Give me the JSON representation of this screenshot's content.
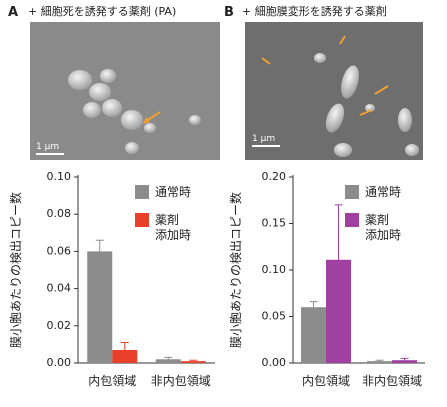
{
  "panels": [
    {
      "label": "A",
      "title": "+ 細胞死を誘発する薬剤 (PA)",
      "scale_bar": "1 µm"
    },
    {
      "label": "B",
      "title": "+ 細胞膜変形を誘発する薬剤",
      "scale_bar": "1 µm"
    }
  ],
  "chart_data": [
    {
      "type": "bar",
      "y_label": "膜小胞あたりの検出コピー数",
      "categories": [
        "内包領域",
        "非内包領域"
      ],
      "series": [
        {
          "name": "通常時",
          "color": "#8c8c8c",
          "values": [
            0.06,
            0.002
          ],
          "errors": [
            0.006,
            0.001
          ]
        },
        {
          "name": "薬剤\n添加時",
          "color": "#e8402a",
          "values": [
            0.007,
            0.001
          ],
          "errors": [
            0.004,
            0.0005
          ]
        }
      ],
      "ylim": [
        0,
        0.1
      ],
      "yticks": [
        {
          "value": 0,
          "label": "0.00"
        },
        {
          "value": 0.02,
          "label": "0.02"
        },
        {
          "value": 0.04,
          "label": "0.04"
        },
        {
          "value": 0.06,
          "label": "0.06"
        },
        {
          "value": 0.08,
          "label": "0.08"
        },
        {
          "value": 0.1,
          "label": "0.10"
        }
      ],
      "legend": "upper right"
    },
    {
      "type": "bar",
      "y_label": "膜小胞あたりの検出コピー数",
      "categories": [
        "内包領域",
        "非内包領域"
      ],
      "series": [
        {
          "name": "通常時",
          "color": "#8c8c8c",
          "values": [
            0.06,
            0.002
          ],
          "errors": [
            0.006,
            0.001
          ]
        },
        {
          "name": "薬剤\n添加時",
          "color": "#a040a0",
          "values": [
            0.111,
            0.003
          ],
          "errors": [
            0.059,
            0.002
          ]
        }
      ],
      "ylim": [
        0,
        0.2
      ],
      "yticks": [
        {
          "value": 0,
          "label": "0.00"
        },
        {
          "value": 0.05,
          "label": "0.05"
        },
        {
          "value": 0.1,
          "label": "0.10"
        },
        {
          "value": 0.15,
          "label": "0.15"
        },
        {
          "value": 0.2,
          "label": "0.20"
        }
      ],
      "legend": "upper right"
    }
  ]
}
